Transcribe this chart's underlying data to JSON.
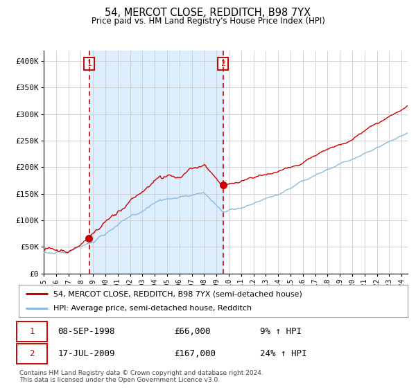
{
  "title": "54, MERCOT CLOSE, REDDITCH, B98 7YX",
  "subtitle": "Price paid vs. HM Land Registry's House Price Index (HPI)",
  "legend_line1": "54, MERCOT CLOSE, REDDITCH, B98 7YX (semi-detached house)",
  "legend_line2": "HPI: Average price, semi-detached house, Redditch",
  "annotation1_date": "08-SEP-1998",
  "annotation1_price": "£66,000",
  "annotation1_hpi": "9% ↑ HPI",
  "annotation2_date": "17-JUL-2009",
  "annotation2_price": "£167,000",
  "annotation2_hpi": "24% ↑ HPI",
  "footer": "Contains HM Land Registry data © Crown copyright and database right 2024.\nThis data is licensed under the Open Government Licence v3.0.",
  "red_line_color": "#cc0000",
  "blue_line_color": "#88bbdd",
  "shade_color": "#ddeeff",
  "dashed_line_color": "#cc0000",
  "annotation_box_color": "#cc0000",
  "bg_color": "#ffffff",
  "grid_color": "#cccccc",
  "ylim": [
    0,
    420000
  ],
  "xlim_start": 1995.0,
  "xlim_end": 2024.5,
  "purchase1_year": 1998.69,
  "purchase1_value": 66000,
  "purchase2_year": 2009.54,
  "purchase2_value": 167000
}
